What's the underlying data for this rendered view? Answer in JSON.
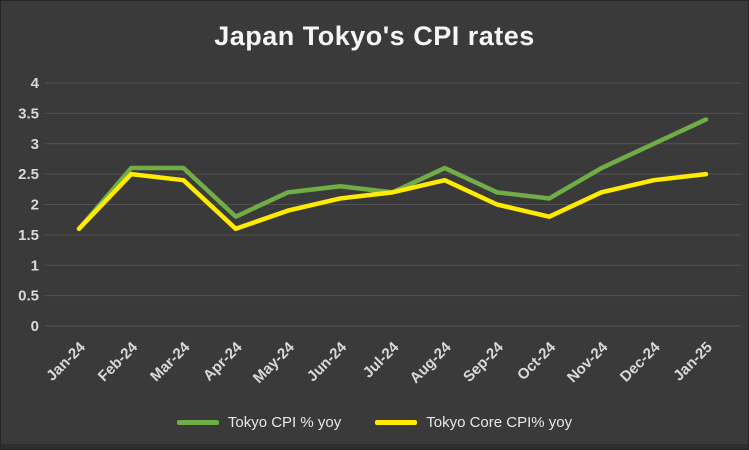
{
  "title": "Japan Tokyo's CPI rates",
  "colors": {
    "background": "#3a3a3a",
    "grid": "#515151",
    "axis_text": "#d9d9d9",
    "title_text": "#f5f5f5",
    "series_green": "#70ad47",
    "series_yellow": "#ffeb00"
  },
  "chart_data": {
    "type": "line",
    "title": "Japan Tokyo's CPI rates",
    "categories": [
      "Jan-24",
      "Feb-24",
      "Mar-24",
      "Apr-24",
      "May-24",
      "Jun-24",
      "Jul-24",
      "Aug-24",
      "Sep-24",
      "Oct-24",
      "Nov-24",
      "Dec-24",
      "Jan-25"
    ],
    "series": [
      {
        "name": "Tokyo CPI % yoy",
        "color": "#70ad47",
        "values": [
          1.6,
          2.6,
          2.6,
          1.8,
          2.2,
          2.3,
          2.2,
          2.6,
          2.2,
          2.1,
          2.6,
          3.0,
          3.4
        ]
      },
      {
        "name": "Tokyo Core CPI% yoy",
        "color": "#ffeb00",
        "values": [
          1.6,
          2.5,
          2.4,
          1.6,
          1.9,
          2.1,
          2.2,
          2.4,
          2.0,
          1.8,
          2.2,
          2.4,
          2.5
        ]
      }
    ],
    "xlabel": "",
    "ylabel": "",
    "ylim": [
      0,
      4
    ],
    "ytick_step": 0.5,
    "grid": true,
    "legend_position": "bottom"
  }
}
